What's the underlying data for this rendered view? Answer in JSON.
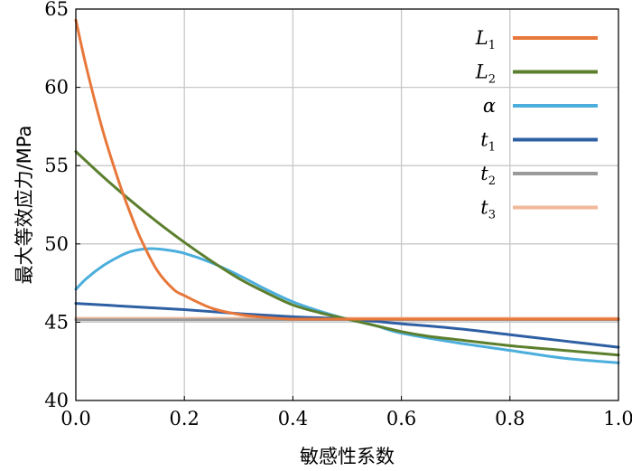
{
  "chart_data": {
    "type": "line",
    "xlabel": "敏感性系数",
    "ylabel": "最大等效应力/MPa",
    "xlim": [
      0,
      1
    ],
    "ylim": [
      40,
      65
    ],
    "xticks": [
      "0.0",
      "0.2",
      "0.4",
      "0.6",
      "0.8",
      "1.0"
    ],
    "xtick_values": [
      0,
      0.2,
      0.4,
      0.6,
      0.8,
      1.0
    ],
    "yticks": [
      "40",
      "45",
      "50",
      "55",
      "60",
      "65"
    ],
    "ytick_values": [
      40,
      45,
      50,
      55,
      60,
      65
    ],
    "grid": true,
    "legend_position": "top-right",
    "series": [
      {
        "name": "L",
        "subscript": "1",
        "color": "#E8773A",
        "x": [
          0,
          0.02,
          0.05,
          0.08,
          0.1,
          0.12,
          0.15,
          0.18,
          0.2,
          0.25,
          0.3,
          0.35,
          0.4,
          0.45,
          0.5,
          0.6,
          0.7,
          0.8,
          0.9,
          1.0
        ],
        "y": [
          64.3,
          61.2,
          57.2,
          53.9,
          52.0,
          50.3,
          48.3,
          47.1,
          46.7,
          45.9,
          45.5,
          45.3,
          45.2,
          45.2,
          45.2,
          45.2,
          45.2,
          45.2,
          45.2,
          45.2
        ]
      },
      {
        "name": "L",
        "subscript": "2",
        "color": "#5C7F2E",
        "x": [
          0,
          0.05,
          0.1,
          0.15,
          0.2,
          0.25,
          0.3,
          0.35,
          0.4,
          0.45,
          0.5,
          0.55,
          0.6,
          0.65,
          0.7,
          0.8,
          0.9,
          1.0
        ],
        "y": [
          55.9,
          54.3,
          52.8,
          51.4,
          50.1,
          48.9,
          47.8,
          46.9,
          46.1,
          45.6,
          45.2,
          44.8,
          44.4,
          44.1,
          43.9,
          43.5,
          43.2,
          42.9
        ]
      },
      {
        "name": "α",
        "subscript": "",
        "color": "#4BAEDC",
        "x": [
          0,
          0.02,
          0.05,
          0.08,
          0.1,
          0.12,
          0.14,
          0.17,
          0.2,
          0.25,
          0.3,
          0.35,
          0.4,
          0.45,
          0.5,
          0.55,
          0.6,
          0.7,
          0.8,
          0.9,
          1.0
        ],
        "y": [
          47.1,
          47.8,
          48.6,
          49.2,
          49.5,
          49.65,
          49.7,
          49.6,
          49.4,
          48.8,
          48.0,
          47.1,
          46.3,
          45.7,
          45.2,
          44.8,
          44.3,
          43.7,
          43.2,
          42.7,
          42.4
        ]
      },
      {
        "name": "t",
        "subscript": "1",
        "color": "#2E5FA3",
        "x": [
          0,
          0.1,
          0.2,
          0.3,
          0.4,
          0.5,
          0.6,
          0.7,
          0.8,
          0.9,
          1.0
        ],
        "y": [
          46.2,
          46.0,
          45.8,
          45.55,
          45.35,
          45.2,
          44.9,
          44.6,
          44.2,
          43.8,
          43.4
        ]
      },
      {
        "name": "t",
        "subscript": "2",
        "color": "#9A9A9A",
        "x": [
          0,
          1.0
        ],
        "y": [
          45.15,
          45.15
        ]
      },
      {
        "name": "t",
        "subscript": "3",
        "color": "#F2B89A",
        "x": [
          0,
          1.0
        ],
        "y": [
          45.25,
          45.25
        ]
      }
    ]
  }
}
